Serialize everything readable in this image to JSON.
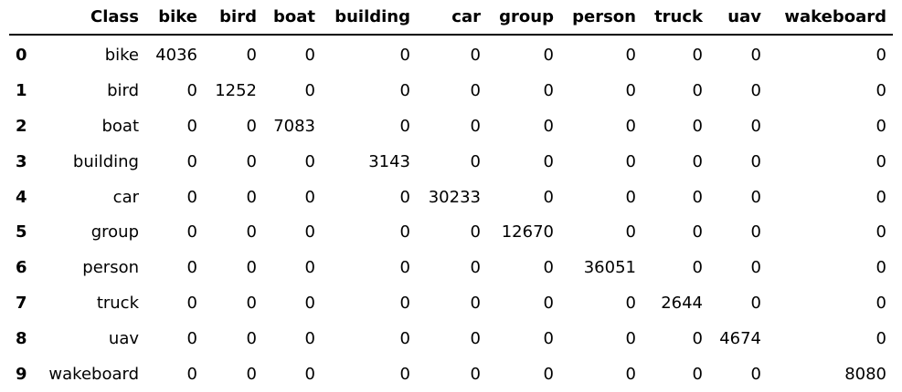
{
  "table": {
    "columns": [
      "",
      "Class",
      "bike",
      "bird",
      "boat",
      "building",
      "car",
      "group",
      "person",
      "truck",
      "uav",
      "wakeboard"
    ],
    "rows": [
      {
        "index": "0",
        "cells": [
          "bike",
          "4036",
          "0",
          "0",
          "0",
          "0",
          "0",
          "0",
          "0",
          "0",
          "0"
        ]
      },
      {
        "index": "1",
        "cells": [
          "bird",
          "0",
          "1252",
          "0",
          "0",
          "0",
          "0",
          "0",
          "0",
          "0",
          "0"
        ]
      },
      {
        "index": "2",
        "cells": [
          "boat",
          "0",
          "0",
          "7083",
          "0",
          "0",
          "0",
          "0",
          "0",
          "0",
          "0"
        ]
      },
      {
        "index": "3",
        "cells": [
          "building",
          "0",
          "0",
          "0",
          "3143",
          "0",
          "0",
          "0",
          "0",
          "0",
          "0"
        ]
      },
      {
        "index": "4",
        "cells": [
          "car",
          "0",
          "0",
          "0",
          "0",
          "30233",
          "0",
          "0",
          "0",
          "0",
          "0"
        ]
      },
      {
        "index": "5",
        "cells": [
          "group",
          "0",
          "0",
          "0",
          "0",
          "0",
          "12670",
          "0",
          "0",
          "0",
          "0"
        ]
      },
      {
        "index": "6",
        "cells": [
          "person",
          "0",
          "0",
          "0",
          "0",
          "0",
          "0",
          "36051",
          "0",
          "0",
          "0"
        ]
      },
      {
        "index": "7",
        "cells": [
          "truck",
          "0",
          "0",
          "0",
          "0",
          "0",
          "0",
          "0",
          "2644",
          "0",
          "0"
        ]
      },
      {
        "index": "8",
        "cells": [
          "uav",
          "0",
          "0",
          "0",
          "0",
          "0",
          "0",
          "0",
          "0",
          "4674",
          "0"
        ]
      },
      {
        "index": "9",
        "cells": [
          "wakeboard",
          "0",
          "0",
          "0",
          "0",
          "0",
          "0",
          "0",
          "0",
          "0",
          "8080"
        ]
      }
    ]
  }
}
